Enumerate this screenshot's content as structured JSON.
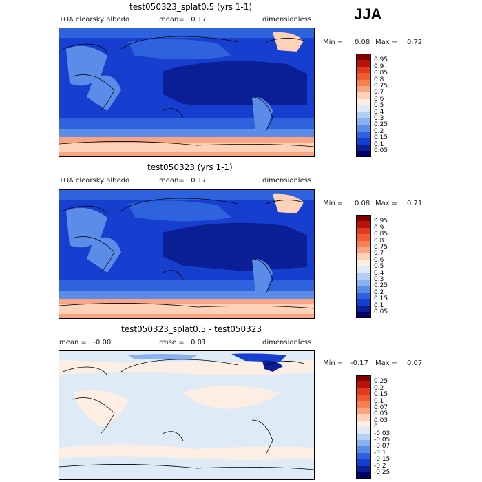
{
  "season": "JJA",
  "panels": [
    {
      "title": "test050323_splat0.5 (yrs 1-1)",
      "left_label": "TOA clearsky albedo",
      "center_label": "mean=   0.17",
      "right_label": "dimensionless",
      "min_label": "Min =",
      "min_value": "0.08",
      "max_label": "Max =",
      "max_value": "0.72",
      "colorbar_labels": [
        "0.95",
        "0.9",
        "0.85",
        "0.8",
        "0.75",
        "0.7",
        "0.6",
        "0.5",
        "0.4",
        "0.3",
        "0.25",
        "0.2",
        "0.15",
        "0.1",
        "0.05"
      ],
      "colorbar_colors": [
        "#800000",
        "#b8130b",
        "#e23a1c",
        "#f25c33",
        "#f7804f",
        "#fba483",
        "#fdd2b8",
        "#fdeee4",
        "#deebf7",
        "#b5cff4",
        "#8bb1f0",
        "#5a8ce8",
        "#2f63dd",
        "#163fd0",
        "#0a1e96",
        "#000066"
      ]
    },
    {
      "title": "test050323 (yrs 1-1)",
      "left_label": "TOA clearsky albedo",
      "center_label": "mean=   0.17",
      "right_label": "dimensionless",
      "min_label": "Min =",
      "min_value": "0.08",
      "max_label": "Max =",
      "max_value": "0.71",
      "colorbar_labels": [
        "0.95",
        "0.9",
        "0.85",
        "0.8",
        "0.75",
        "0.7",
        "0.6",
        "0.5",
        "0.4",
        "0.3",
        "0.25",
        "0.2",
        "0.15",
        "0.1",
        "0.05"
      ],
      "colorbar_colors": [
        "#800000",
        "#b8130b",
        "#e23a1c",
        "#f25c33",
        "#f7804f",
        "#fba483",
        "#fdd2b8",
        "#fdeee4",
        "#deebf7",
        "#b5cff4",
        "#8bb1f0",
        "#5a8ce8",
        "#2f63dd",
        "#163fd0",
        "#0a1e96",
        "#000066"
      ]
    },
    {
      "title": "test050323_splat0.5 - test050323",
      "left_label": "mean =   -0.00",
      "center_label": "rmse =   0.01",
      "right_label": "dimensionless",
      "min_label": "Min =",
      "min_value": "-0.17",
      "max_label": "Max =",
      "max_value": "0.07",
      "colorbar_labels": [
        "0.25",
        "0.2",
        "0.15",
        "0.1",
        "0.07",
        "0.05",
        "0.03",
        "0",
        "-0.03",
        "-0.05",
        "-0.07",
        "-0.1",
        "-0.15",
        "-0.2",
        "-0.25"
      ],
      "colorbar_colors": [
        "#800000",
        "#b8130b",
        "#e23a1c",
        "#f25c33",
        "#f7804f",
        "#fba483",
        "#fdd2b8",
        "#fdeee4",
        "#deebf7",
        "#b5cff4",
        "#8bb1f0",
        "#5a8ce8",
        "#2f63dd",
        "#163fd0",
        "#0a1e96",
        "#000066"
      ]
    }
  ],
  "chart_data": [
    {
      "type": "heatmap",
      "title": "test050323_splat0.5 (yrs 1-1)",
      "variable": "TOA clearsky albedo",
      "units": "dimensionless",
      "mean": 0.17,
      "min": 0.08,
      "max": 0.72,
      "levels": [
        0.05,
        0.1,
        0.15,
        0.2,
        0.25,
        0.3,
        0.4,
        0.5,
        0.6,
        0.7,
        0.75,
        0.8,
        0.85,
        0.9,
        0.95
      ]
    },
    {
      "type": "heatmap",
      "title": "test050323 (yrs 1-1)",
      "variable": "TOA clearsky albedo",
      "units": "dimensionless",
      "mean": 0.17,
      "min": 0.08,
      "max": 0.71,
      "levels": [
        0.05,
        0.1,
        0.15,
        0.2,
        0.25,
        0.3,
        0.4,
        0.5,
        0.6,
        0.7,
        0.75,
        0.8,
        0.85,
        0.9,
        0.95
      ]
    },
    {
      "type": "heatmap",
      "title": "test050323_splat0.5 - test050323",
      "units": "dimensionless",
      "mean": -0.0,
      "rmse": 0.01,
      "min": -0.17,
      "max": 0.07,
      "levels": [
        -0.25,
        -0.2,
        -0.15,
        -0.1,
        -0.07,
        -0.05,
        -0.03,
        0,
        0.03,
        0.05,
        0.07,
        0.1,
        0.15,
        0.2,
        0.25
      ]
    }
  ]
}
